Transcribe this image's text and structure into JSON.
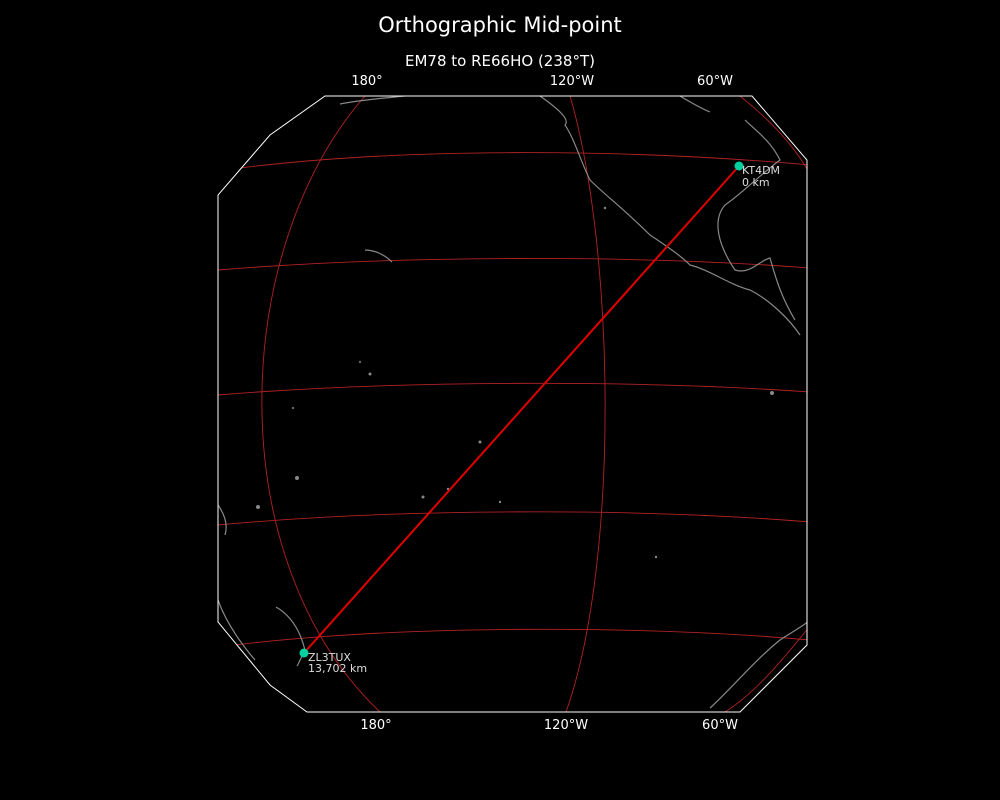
{
  "title": "Orthographic Mid-point",
  "subtitle": "EM78 to RE66HO (238°T)",
  "top_ticks": [
    "180°",
    "120°W",
    "60°W"
  ],
  "bottom_ticks": [
    "180°",
    "120°W",
    "60°W"
  ],
  "colors": {
    "background": "#000000",
    "path": "#e00000",
    "graticule": "#b22222",
    "coast": "#888888",
    "marker": "#00d0a0"
  },
  "points": [
    {
      "call": "KT4DM",
      "distance": "0 km"
    },
    {
      "call": "ZL3TUX",
      "distance": "13,702 km"
    }
  ]
}
